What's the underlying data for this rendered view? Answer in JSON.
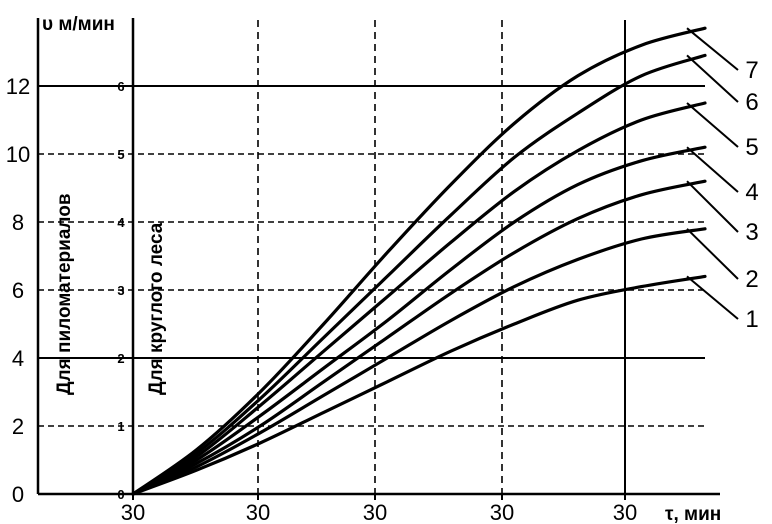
{
  "chart_data": {
    "type": "line",
    "y_title": "υ м/мин",
    "x_title": "τ, мин",
    "x_tick_labels": [
      "30",
      "30",
      "30",
      "30",
      "30"
    ],
    "y_ticks_outer": [
      "0",
      "2",
      "4",
      "6",
      "8",
      "10",
      "12"
    ],
    "y_ticks_inner": [
      "0",
      "1",
      "2",
      "3",
      "4",
      "5",
      "6"
    ],
    "vertical_label_sawn": "Для пиломатериалов",
    "vertical_label_round": "Для круглого леса",
    "grid": true,
    "x": [
      0,
      0.5,
      1,
      1.5,
      2,
      2.5,
      3,
      3.5,
      4,
      4.5
    ],
    "xlim": [
      0,
      4.5
    ],
    "ylim": [
      0,
      13.6
    ],
    "series": [
      {
        "name": "1",
        "values": [
          0,
          0.7,
          1.5,
          2.4,
          3.3,
          4.2,
          5.0,
          5.7,
          6.1,
          6.4
        ]
      },
      {
        "name": "2",
        "values": [
          0,
          0.8,
          1.8,
          2.9,
          4.0,
          5.1,
          6.1,
          6.9,
          7.5,
          7.8
        ]
      },
      {
        "name": "3",
        "values": [
          0,
          0.9,
          2.0,
          3.3,
          4.6,
          5.9,
          7.1,
          8.1,
          8.8,
          9.2
        ]
      },
      {
        "name": "4",
        "values": [
          0,
          1.0,
          2.3,
          3.7,
          5.1,
          6.6,
          8.0,
          9.1,
          9.8,
          10.2
        ]
      },
      {
        "name": "5",
        "values": [
          0,
          1.1,
          2.6,
          4.2,
          5.8,
          7.4,
          8.9,
          10.1,
          11.0,
          11.5
        ]
      },
      {
        "name": "6",
        "values": [
          0,
          1.2,
          2.8,
          4.6,
          6.4,
          8.2,
          9.9,
          11.2,
          12.3,
          12.9
        ]
      },
      {
        "name": "7",
        "values": [
          0,
          1.3,
          3.0,
          5.0,
          7.1,
          9.1,
          10.9,
          12.3,
          13.2,
          13.7
        ]
      }
    ]
  }
}
